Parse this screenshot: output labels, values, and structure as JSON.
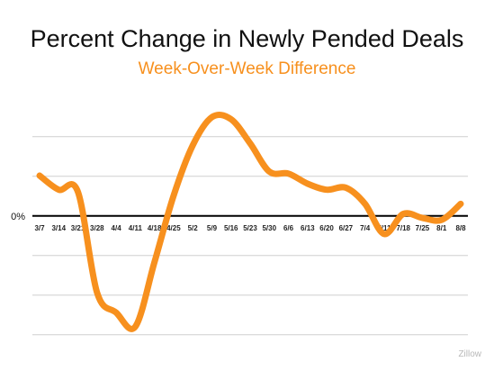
{
  "title": "Percent Change in Newly Pended Deals",
  "subtitle": "Week-Over-Week Difference",
  "source": "Zillow",
  "colors": {
    "line": "#F7901E",
    "subtitle": "#F7901E",
    "grid": "#cfcfcf",
    "zero_line": "#000000"
  },
  "chart_data": {
    "type": "line",
    "title": "Percent Change in Newly Pended Deals",
    "subtitle": "Week-Over-Week Difference",
    "xlabel": "",
    "ylabel": "",
    "zero_label": "0%",
    "categories": [
      "3/7",
      "3/14",
      "3/21",
      "3/28",
      "4/4",
      "4/11",
      "4/18",
      "4/25",
      "5/2",
      "5/9",
      "5/16",
      "5/23",
      "5/30",
      "6/6",
      "6/13",
      "6/20",
      "6/27",
      "7/4",
      "7/11",
      "7/18",
      "7/25",
      "8/1",
      "8/8"
    ],
    "series": [
      {
        "values": [
          1.0,
          0.65,
          0.6,
          -1.9,
          -2.4,
          -2.75,
          -1.15,
          0.5,
          1.75,
          2.45,
          2.4,
          1.8,
          1.1,
          1.05,
          0.8,
          0.65,
          0.7,
          0.3,
          -0.45,
          0.05,
          -0.05,
          -0.1,
          0.3
        ]
      }
    ],
    "ylim": [
      -3.0,
      2.9
    ],
    "grid": true,
    "legend": "none"
  }
}
